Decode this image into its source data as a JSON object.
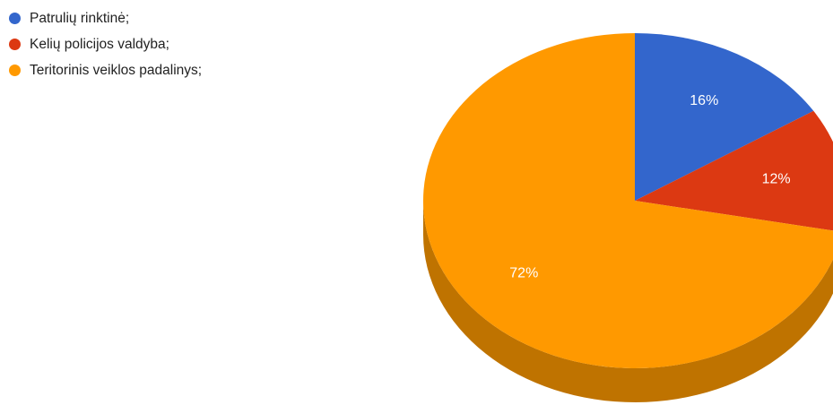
{
  "chart_data": {
    "type": "pie",
    "title": "",
    "legend_position": "top-left",
    "three_d": true,
    "slices": [
      {
        "label": "Patrulių rinktinė;",
        "value": 16,
        "value_label": "16%",
        "color": "#3366cc",
        "side_color": "#264d99"
      },
      {
        "label": "Kelių policijos valdyba;",
        "value": 12,
        "value_label": "12%",
        "color": "#dc3912",
        "side_color": "#a52b0e"
      },
      {
        "label": "Teritorinis veiklos padalinys;",
        "value": 72,
        "value_label": "72%",
        "color": "#ff9900",
        "side_color": "#bf7300"
      }
    ]
  }
}
